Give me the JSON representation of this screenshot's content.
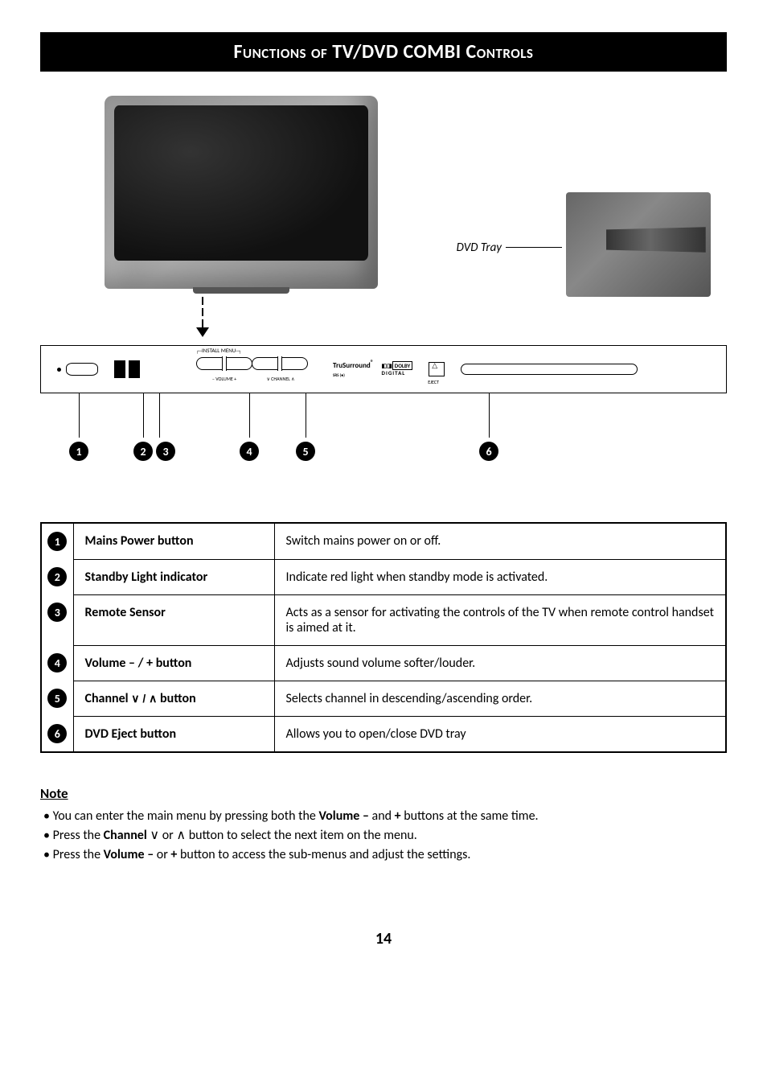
{
  "title": {
    "prefix": "Functions of",
    "main": " TV/DVD COMBI ",
    "suffix": "Controls"
  },
  "diagram": {
    "dvd_tray_label": "DVD Tray",
    "panel": {
      "install_menu": "INSTALL MENU",
      "volume_label": "– VOLUME +",
      "channel_label": "∨ CHANNEL ∧",
      "logo1": "TruSurround",
      "logo1_sub": "SRS (●)",
      "logo2_top": "DOLBY",
      "logo2_bottom": "DIGITAL",
      "eject_label": "EJECT"
    },
    "callouts": [
      "1",
      "2",
      "3",
      "4",
      "5",
      "6"
    ]
  },
  "table": {
    "rows": [
      {
        "num": "1",
        "name": "Mains Power button",
        "desc": "Switch mains power on or off."
      },
      {
        "num": "2",
        "name": "Standby Light indicator",
        "desc": "Indicate red light when standby mode is activated."
      },
      {
        "num": "3",
        "name": "Remote Sensor",
        "desc": "Acts as a sensor for activating the controls of the TV when remote control handset is aimed at it."
      },
      {
        "num": "4",
        "name": "Volume – / + button",
        "desc": "Adjusts sound volume softer/louder."
      },
      {
        "num": "5",
        "name_pre": "Channel ",
        "name_sym": "∨ / ∧",
        "name_post": " button",
        "desc": "Selects channel in descending/ascending order."
      },
      {
        "num": "6",
        "name": "DVD Eject button",
        "desc": "Allows you to open/close  DVD tray"
      }
    ]
  },
  "note": {
    "heading": "Note",
    "items": [
      {
        "parts": [
          "You can enter the main menu by pressing both the ",
          {
            "b": "Volume –"
          },
          " and ",
          {
            "b": "+"
          },
          " buttons at the same time."
        ]
      },
      {
        "parts": [
          "Press the ",
          {
            "b": "Channel"
          },
          "  ∨  or  ∧  button to select the next item on the menu."
        ]
      },
      {
        "parts": [
          "Press the ",
          {
            "b": "Volume –"
          },
          " or ",
          {
            "b": "+"
          },
          " button to access the sub-menus and adjust the settings."
        ]
      }
    ]
  },
  "page_number": "14"
}
